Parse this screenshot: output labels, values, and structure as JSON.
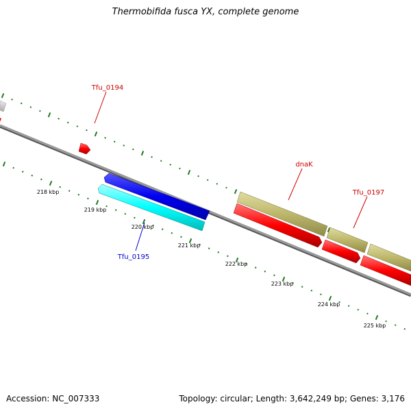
{
  "title": "Thermobifida fusca YX, complete genome",
  "footer": {
    "accession": "Accession: NC_007333",
    "summary": "Topology: circular; Length: 3,642,249 bp; Genes: 3,176"
  },
  "colors": {
    "backbone": "#7a7a7a",
    "tick": "#1e7a1e",
    "gene_forward": "#0000ee",
    "gene_forward_light": "#00ffff",
    "gene_reverse": "#ff0000",
    "gene_khaki": "#bdb76b",
    "label_red": "#cc0000",
    "label_blue": "#0000cc"
  },
  "scale_labels": [
    "218 kbp",
    "219 kbp",
    "220 kbp",
    "221 kbp",
    "222 kbp",
    "223 kbp",
    "224 kbp",
    "225 kbp"
  ],
  "gene_labels": [
    {
      "name": "Tfu_0194",
      "color": "red"
    },
    {
      "name": "dnaK",
      "color": "red"
    },
    {
      "name": "Tfu_0197",
      "color": "red"
    },
    {
      "name": "Tfu_0195",
      "color": "blue"
    }
  ]
}
